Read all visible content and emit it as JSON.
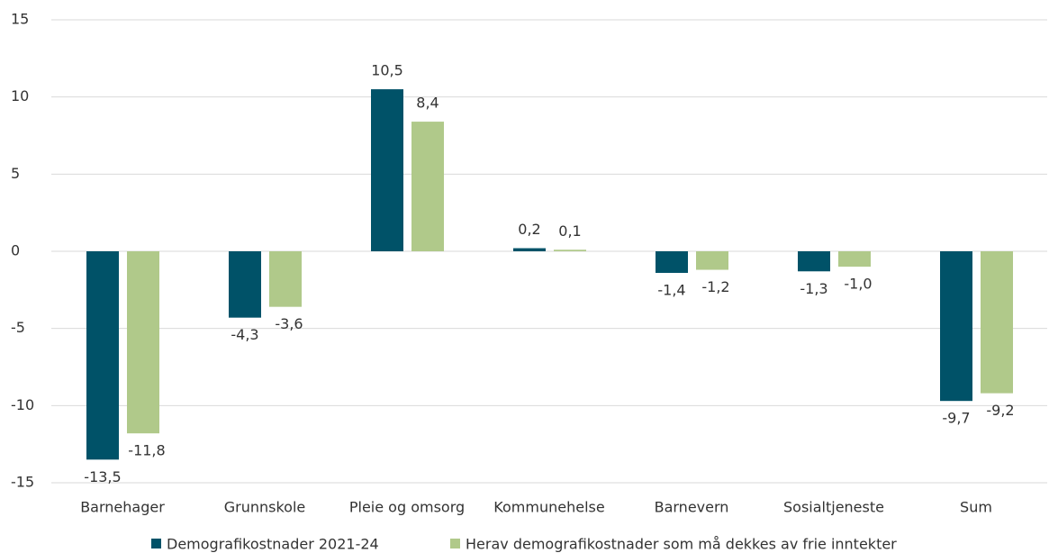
{
  "chart_data": {
    "type": "bar",
    "categories": [
      "Barnehager",
      "Grunnskole",
      "Pleie og omsorg",
      "Kommunehelse",
      "Barnevern",
      "Sosialtjeneste",
      "Sum"
    ],
    "series": [
      {
        "name": "Demografikostnader 2021-24",
        "color": "#005268",
        "values": [
          -13.5,
          -4.3,
          10.5,
          0.2,
          -1.4,
          -1.3,
          -9.7
        ],
        "value_labels": [
          "-13,5",
          "-4,3",
          "10,5",
          "0,2",
          "-1,4",
          "-1,3",
          "-9,7"
        ]
      },
      {
        "name": "Herav demografikostnader som må dekkes av frie inntekter",
        "color": "#b0c98a",
        "values": [
          -11.8,
          -3.6,
          8.4,
          0.1,
          -1.2,
          -1.0,
          -9.2
        ],
        "value_labels": [
          "-11,8",
          "-3,6",
          "8,4",
          "0,1",
          "-1,2",
          "-1,0",
          "-9,2"
        ]
      }
    ],
    "ylim": [
      -15,
      15
    ],
    "yticks": [
      -15,
      -10,
      -5,
      0,
      5,
      10,
      15
    ],
    "grid": true,
    "legend": "bottom"
  }
}
